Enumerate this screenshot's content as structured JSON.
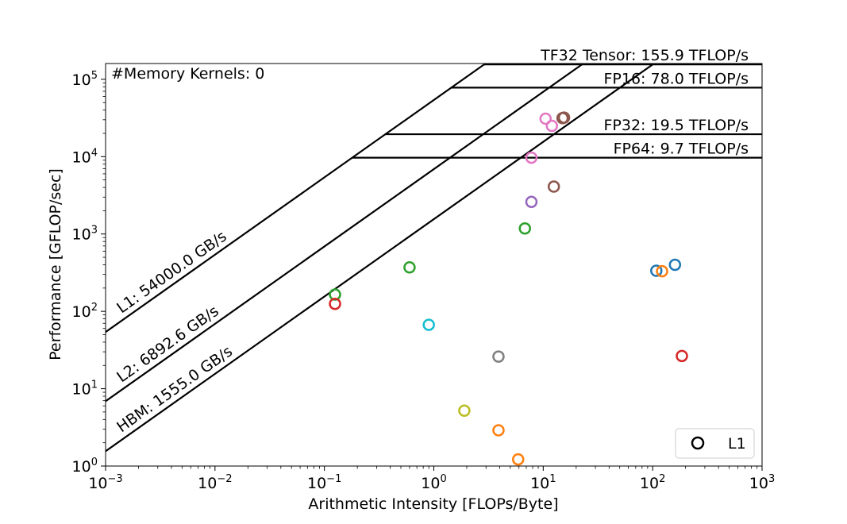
{
  "chart_data": {
    "type": "scatter",
    "title": "",
    "xlabel": "Arithmetic Intensity [FLOPs/Byte]",
    "ylabel": "Performance [GFLOP/sec]",
    "xscale": "log",
    "yscale": "log",
    "xlim": [
      0.001,
      1000
    ],
    "ylim": [
      1,
      160000
    ],
    "x_ticks": [
      {
        "value": 0.001,
        "mantissa": "10",
        "exp": "−3"
      },
      {
        "value": 0.01,
        "mantissa": "10",
        "exp": "−2"
      },
      {
        "value": 0.1,
        "mantissa": "10",
        "exp": "−1"
      },
      {
        "value": 1,
        "mantissa": "10",
        "exp": "0"
      },
      {
        "value": 10,
        "mantissa": "10",
        "exp": "1"
      },
      {
        "value": 100,
        "mantissa": "10",
        "exp": "2"
      },
      {
        "value": 1000,
        "mantissa": "10",
        "exp": "3"
      }
    ],
    "y_ticks": [
      {
        "value": 1,
        "mantissa": "10",
        "exp": "0"
      },
      {
        "value": 10,
        "mantissa": "10",
        "exp": "1"
      },
      {
        "value": 100,
        "mantissa": "10",
        "exp": "2"
      },
      {
        "value": 1000,
        "mantissa": "10",
        "exp": "3"
      },
      {
        "value": 10000,
        "mantissa": "10",
        "exp": "4"
      },
      {
        "value": 100000,
        "mantissa": "10",
        "exp": "5"
      }
    ],
    "compute_ceilings": [
      {
        "label": "TF32 Tensor: 155.9 TFLOP/s",
        "gflops": 155900
      },
      {
        "label": "FP16: 78.0 TFLOP/s",
        "gflops": 78000
      },
      {
        "label": "FP32: 19.5 TFLOP/s",
        "gflops": 19500
      },
      {
        "label": "FP64: 9.7 TFLOP/s",
        "gflops": 9700
      }
    ],
    "bandwidth_ceilings": [
      {
        "label": "L1: 54000.0 GB/s",
        "gbps": 54000
      },
      {
        "label": "L2: 6892.6 GB/s",
        "gbps": 6892.6
      },
      {
        "label": "HBM: 1555.0 GB/s",
        "gbps": 1555
      }
    ],
    "annotation": "#Memory Kernels: 0",
    "legend": {
      "entries": [
        "L1"
      ],
      "position": "lower-right"
    },
    "points": [
      {
        "x": 10.5,
        "y": 31000,
        "color": "#e377c2"
      },
      {
        "x": 12,
        "y": 25000,
        "color": "#e377c2"
      },
      {
        "x": 15,
        "y": 31500,
        "color": "#8c564b"
      },
      {
        "x": 15.5,
        "y": 32000,
        "color": "#8c564b"
      },
      {
        "x": 7.8,
        "y": 9700,
        "color": "#e377c2"
      },
      {
        "x": 12.5,
        "y": 4100,
        "color": "#8c564b"
      },
      {
        "x": 7.8,
        "y": 2600,
        "color": "#9467bd"
      },
      {
        "x": 6.8,
        "y": 1180,
        "color": "#2ca02c"
      },
      {
        "x": 0.6,
        "y": 370,
        "color": "#2ca02c"
      },
      {
        "x": 0.125,
        "y": 165,
        "color": "#2ca02c"
      },
      {
        "x": 0.125,
        "y": 125,
        "color": "#d62728"
      },
      {
        "x": 0.9,
        "y": 67,
        "color": "#17becf"
      },
      {
        "x": 3.9,
        "y": 26,
        "color": "#7f7f7f"
      },
      {
        "x": 1.9,
        "y": 5.2,
        "color": "#bcbd22"
      },
      {
        "x": 3.9,
        "y": 2.9,
        "color": "#ff7f0e"
      },
      {
        "x": 5.9,
        "y": 1.22,
        "color": "#ff7f0e"
      },
      {
        "x": 108,
        "y": 335,
        "color": "#1f77b4"
      },
      {
        "x": 122,
        "y": 330,
        "color": "#ff7f0e"
      },
      {
        "x": 160,
        "y": 400,
        "color": "#1f77b4"
      },
      {
        "x": 185,
        "y": 26.5,
        "color": "#d62728"
      }
    ]
  }
}
